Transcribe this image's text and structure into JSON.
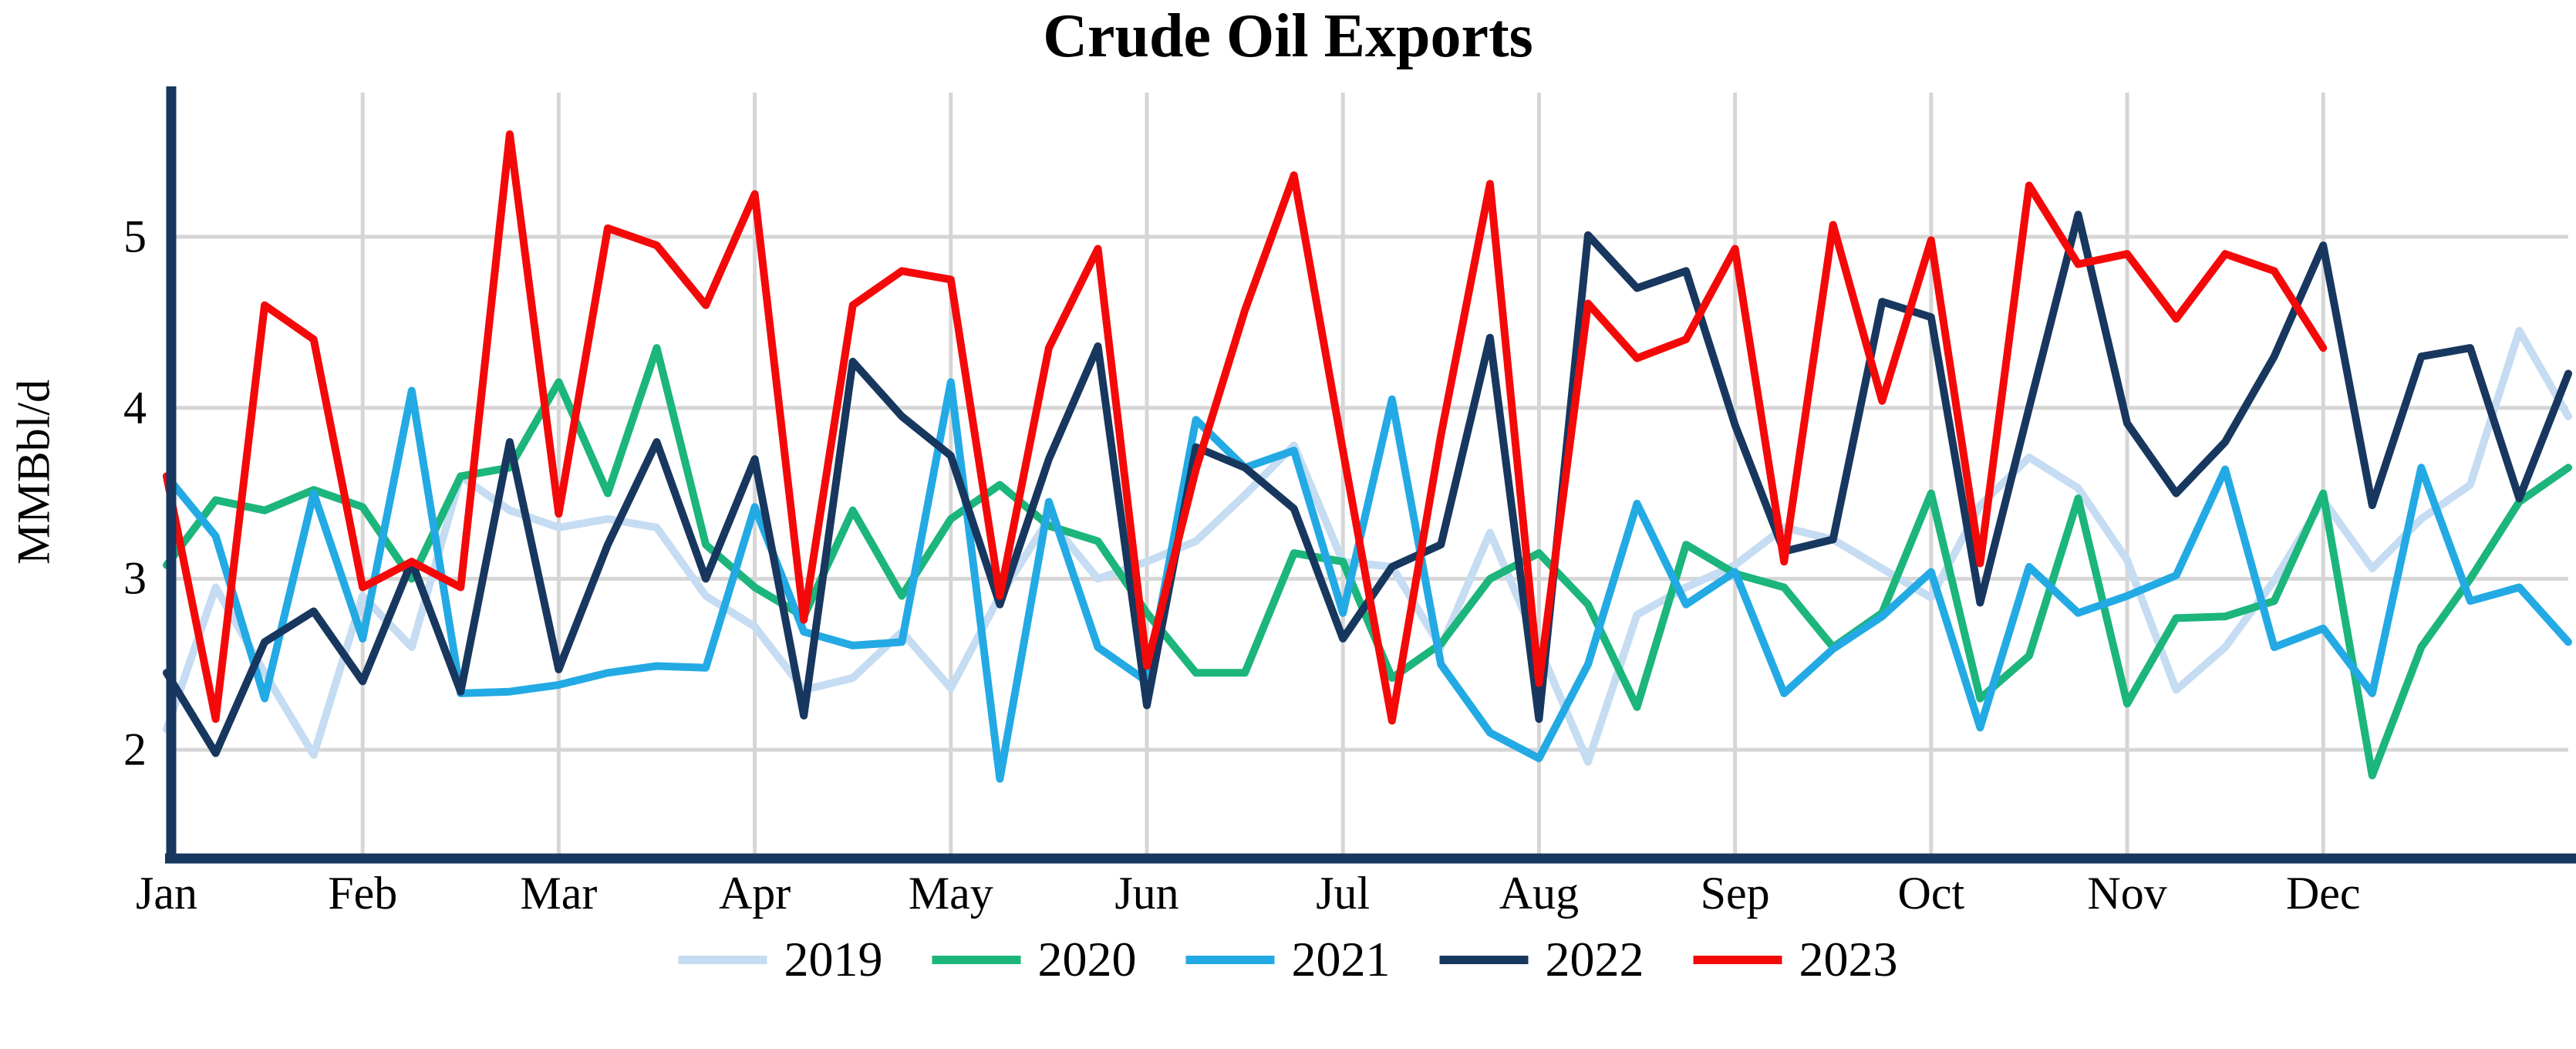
{
  "title": "Crude Oil Exports",
  "colors": {
    "axis": "#17375e",
    "gridline": "#d6d6d6",
    "text": "#000000"
  },
  "chart_data": {
    "type": "line",
    "title": "Crude Oil Exports",
    "xlabel": "",
    "ylabel": "MMBbl/d",
    "x_categories_months": [
      "Jan",
      "Feb",
      "Mar",
      "Apr",
      "May",
      "Jun",
      "Jul",
      "Aug",
      "Sep",
      "Oct",
      "Nov",
      "Dec"
    ],
    "points_per_month": 4,
    "total_weekly_points": 50,
    "y_ticks": [
      2,
      3,
      4,
      5
    ],
    "ylim": [
      1.37,
      5.84
    ],
    "grid": true,
    "legend_position": "bottom",
    "series": [
      {
        "name": "2019",
        "color": "#c5dcf2",
        "values": [
          2.12,
          2.95,
          2.45,
          1.97,
          2.9,
          2.6,
          3.6,
          3.4,
          3.3,
          3.35,
          3.3,
          2.9,
          2.72,
          2.35,
          2.42,
          2.69,
          2.36,
          2.9,
          3.35,
          3.0,
          3.1,
          3.22,
          3.49,
          3.78,
          3.1,
          3.07,
          2.6,
          3.27,
          2.6,
          1.93,
          2.79,
          2.95,
          3.08,
          3.3,
          3.23,
          3.06,
          2.89,
          3.43,
          3.71,
          3.53,
          3.11,
          2.35,
          2.6,
          2.99,
          3.46,
          3.06,
          3.35,
          3.55,
          4.45,
          3.95
        ]
      },
      {
        "name": "2020",
        "color": "#1cb57c",
        "values": [
          3.08,
          3.46,
          3.4,
          3.52,
          3.42,
          3.0,
          3.6,
          3.65,
          4.15,
          3.5,
          4.35,
          3.2,
          2.95,
          2.78,
          3.4,
          2.9,
          3.35,
          3.55,
          3.31,
          3.22,
          2.8,
          2.45,
          2.45,
          3.15,
          3.1,
          2.42,
          2.62,
          3.0,
          3.15,
          2.85,
          2.25,
          3.2,
          3.03,
          2.95,
          2.6,
          2.8,
          3.5,
          2.3,
          2.55,
          3.47,
          2.27,
          2.77,
          2.78,
          2.87,
          3.5,
          1.85,
          2.6,
          3.0,
          3.45,
          3.65
        ]
      },
      {
        "name": "2021",
        "color": "#23aae4",
        "values": [
          3.6,
          3.25,
          2.3,
          3.5,
          2.65,
          4.1,
          2.33,
          2.34,
          2.38,
          2.45,
          2.49,
          2.48,
          3.42,
          2.69,
          2.61,
          2.63,
          4.15,
          1.83,
          3.45,
          2.6,
          2.4,
          3.93,
          3.65,
          3.75,
          2.8,
          4.05,
          2.5,
          2.1,
          1.95,
          2.5,
          3.44,
          2.85,
          3.04,
          2.33,
          2.59,
          2.78,
          3.04,
          2.13,
          3.07,
          2.8,
          2.9,
          3.02,
          3.64,
          2.6,
          2.71,
          2.33,
          3.65,
          2.87,
          2.95,
          2.63
        ]
      },
      {
        "name": "2022",
        "color": "#17375e",
        "values": [
          2.45,
          1.98,
          2.63,
          2.81,
          2.4,
          3.1,
          2.34,
          3.8,
          2.47,
          3.2,
          3.8,
          3.0,
          3.7,
          2.2,
          4.27,
          3.95,
          3.72,
          2.85,
          3.7,
          4.36,
          2.26,
          3.77,
          3.65,
          3.41,
          2.65,
          3.07,
          3.2,
          4.41,
          2.18,
          5.01,
          4.7,
          4.8,
          3.9,
          3.16,
          3.23,
          4.62,
          4.53,
          2.86,
          4.0,
          5.13,
          3.91,
          3.5,
          3.8,
          4.3,
          4.95,
          3.43,
          4.3,
          4.35,
          3.47,
          4.2
        ]
      },
      {
        "name": "2023",
        "color": "#f40909",
        "values": [
          3.6,
          2.18,
          4.6,
          4.4,
          2.95,
          3.1,
          2.95,
          5.6,
          3.38,
          5.05,
          4.95,
          4.6,
          5.25,
          2.76,
          4.6,
          4.8,
          4.75,
          2.9,
          4.35,
          4.93,
          2.49,
          3.64,
          4.57,
          5.36,
          3.75,
          2.17,
          3.84,
          5.31,
          2.39,
          4.61,
          4.29,
          4.4,
          4.93,
          3.1,
          5.07,
          4.04,
          4.98,
          3.09,
          5.3,
          4.84,
          4.9,
          4.52,
          4.9,
          4.8,
          4.35
        ]
      }
    ]
  }
}
